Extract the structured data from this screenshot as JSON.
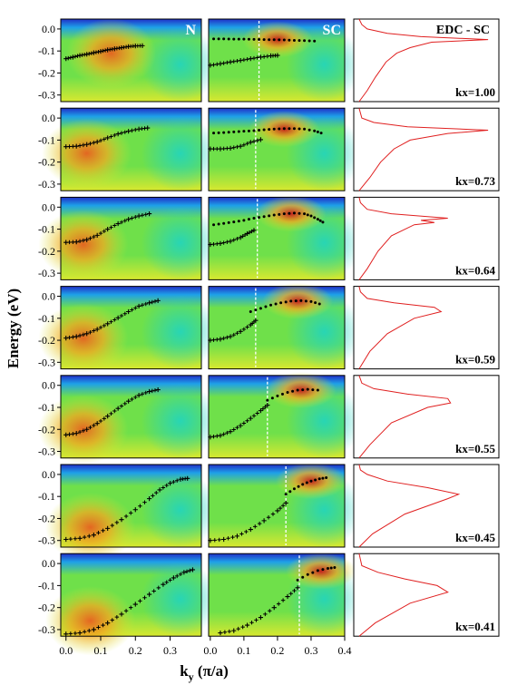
{
  "chart_data": {
    "type": "heatmap",
    "ylabel": "Energy (eV)",
    "xlabel": "k",
    "xlabel_sub": "y",
    "xlabel_unit": " (π/a)",
    "col_label_N": "N",
    "col_label_SC": "SC",
    "edc_title": "EDC - SC",
    "y_ticks": [
      "0.0",
      "-0.1",
      "-0.2",
      "-0.3"
    ],
    "y_tick_values": [
      0.0,
      -0.1,
      -0.2,
      -0.3
    ],
    "ylim": [
      -0.33,
      0.045
    ],
    "x_ticks_N": [
      "0.0",
      "0.1",
      "0.2",
      "0.3"
    ],
    "x_tick_values_N": [
      0.0,
      0.1,
      0.2,
      0.3
    ],
    "xlim_N": [
      -0.015,
      0.39
    ],
    "x_ticks_SC": [
      "0.0",
      "0.1",
      "0.2",
      "0.3",
      "0.4"
    ],
    "x_tick_values_SC": [
      0.0,
      0.1,
      0.2,
      0.3,
      0.4
    ],
    "xlim_SC": [
      -0.005,
      0.4
    ],
    "colors": {
      "colormap": [
        "#2030c8",
        "#1ea0e8",
        "#20d4c0",
        "#6fe04a",
        "#d8e830",
        "#f4a820",
        "#e86020",
        "#c81818"
      ],
      "crosses": "#000000",
      "dots": "#000000",
      "kf_line": "#ffffff",
      "edc": "#e02020"
    },
    "rows": [
      {
        "kx_label": "kx=1.00",
        "kf": 0.145,
        "N_crosses": [
          [
            0.0,
            -0.135
          ],
          [
            0.02,
            -0.128
          ],
          [
            0.04,
            -0.12
          ],
          [
            0.06,
            -0.115
          ],
          [
            0.08,
            -0.108
          ],
          [
            0.1,
            -0.102
          ],
          [
            0.12,
            -0.095
          ],
          [
            0.14,
            -0.09
          ],
          [
            0.16,
            -0.085
          ],
          [
            0.18,
            -0.08
          ],
          [
            0.2,
            -0.077
          ],
          [
            0.22,
            -0.076
          ]
        ],
        "N_peak": [
          0.13,
          -0.11
        ],
        "SC_upper_dots": [
          [
            0.01,
            -0.045
          ],
          [
            0.04,
            -0.045
          ],
          [
            0.07,
            -0.046
          ],
          [
            0.1,
            -0.046
          ],
          [
            0.13,
            -0.047
          ],
          [
            0.16,
            -0.048
          ],
          [
            0.19,
            -0.049
          ],
          [
            0.22,
            -0.05
          ],
          [
            0.25,
            -0.052
          ],
          [
            0.28,
            -0.053
          ],
          [
            0.31,
            -0.055
          ]
        ],
        "SC_lower_crosses": [
          [
            0.0,
            -0.165
          ],
          [
            0.03,
            -0.158
          ],
          [
            0.06,
            -0.15
          ],
          [
            0.09,
            -0.143
          ],
          [
            0.12,
            -0.135
          ],
          [
            0.15,
            -0.128
          ],
          [
            0.18,
            -0.122
          ],
          [
            0.2,
            -0.12
          ]
        ],
        "SC_peak": [
          0.2,
          -0.048
        ],
        "edc": [
          [
            0.04,
            -0.33
          ],
          [
            0.1,
            -0.28
          ],
          [
            0.16,
            -0.22
          ],
          [
            0.24,
            -0.15
          ],
          [
            0.32,
            -0.11
          ],
          [
            0.42,
            -0.085
          ],
          [
            0.58,
            -0.06
          ],
          [
            1.0,
            -0.048
          ],
          [
            0.5,
            -0.035
          ],
          [
            0.25,
            -0.02
          ],
          [
            0.1,
            0.0
          ],
          [
            0.06,
            0.02
          ],
          [
            0.04,
            0.045
          ]
        ]
      },
      {
        "kx_label": "kx=0.73",
        "kf": 0.135,
        "N_crosses": [
          [
            0.0,
            -0.13
          ],
          [
            0.03,
            -0.128
          ],
          [
            0.06,
            -0.12
          ],
          [
            0.09,
            -0.108
          ],
          [
            0.12,
            -0.09
          ],
          [
            0.15,
            -0.072
          ],
          [
            0.18,
            -0.06
          ],
          [
            0.21,
            -0.05
          ],
          [
            0.235,
            -0.045
          ]
        ],
        "N_peak": [
          0.06,
          -0.16
        ],
        "SC_upper_dots": [
          [
            0.01,
            -0.068
          ],
          [
            0.04,
            -0.066
          ],
          [
            0.07,
            -0.063
          ],
          [
            0.1,
            -0.06
          ],
          [
            0.13,
            -0.057
          ],
          [
            0.16,
            -0.053
          ],
          [
            0.19,
            -0.05
          ],
          [
            0.22,
            -0.048
          ],
          [
            0.25,
            -0.048
          ],
          [
            0.28,
            -0.05
          ],
          [
            0.31,
            -0.058
          ],
          [
            0.33,
            -0.068
          ]
        ],
        "SC_lower_crosses": [
          [
            0.0,
            -0.14
          ],
          [
            0.03,
            -0.14
          ],
          [
            0.06,
            -0.137
          ],
          [
            0.09,
            -0.128
          ],
          [
            0.12,
            -0.11
          ],
          [
            0.15,
            -0.098
          ]
        ],
        "SC_peak": [
          0.22,
          -0.05
        ],
        "edc": [
          [
            0.04,
            -0.33
          ],
          [
            0.12,
            -0.27
          ],
          [
            0.2,
            -0.2
          ],
          [
            0.3,
            -0.14
          ],
          [
            0.42,
            -0.1
          ],
          [
            0.7,
            -0.07
          ],
          [
            1.0,
            -0.055
          ],
          [
            0.4,
            -0.04
          ],
          [
            0.15,
            -0.02
          ],
          [
            0.06,
            0.0
          ],
          [
            0.04,
            0.045
          ]
        ]
      },
      {
        "kx_label": "kx=0.64",
        "kf": 0.14,
        "N_crosses": [
          [
            0.0,
            -0.16
          ],
          [
            0.03,
            -0.158
          ],
          [
            0.06,
            -0.148
          ],
          [
            0.09,
            -0.128
          ],
          [
            0.12,
            -0.1
          ],
          [
            0.15,
            -0.075
          ],
          [
            0.18,
            -0.055
          ],
          [
            0.21,
            -0.04
          ],
          [
            0.24,
            -0.03
          ]
        ],
        "N_peak": [
          0.05,
          -0.17
        ],
        "SC_upper_dots": [
          [
            0.01,
            -0.08
          ],
          [
            0.04,
            -0.074
          ],
          [
            0.07,
            -0.067
          ],
          [
            0.1,
            -0.06
          ],
          [
            0.13,
            -0.05
          ],
          [
            0.16,
            -0.043
          ],
          [
            0.19,
            -0.036
          ],
          [
            0.22,
            -0.03
          ],
          [
            0.25,
            -0.027
          ],
          [
            0.28,
            -0.03
          ],
          [
            0.3,
            -0.04
          ],
          [
            0.32,
            -0.055
          ],
          [
            0.335,
            -0.068
          ]
        ],
        "SC_lower_crosses": [
          [
            0.0,
            -0.17
          ],
          [
            0.03,
            -0.165
          ],
          [
            0.06,
            -0.155
          ],
          [
            0.09,
            -0.138
          ],
          [
            0.11,
            -0.12
          ],
          [
            0.13,
            -0.105
          ]
        ],
        "SC_peak": [
          0.24,
          -0.03
        ],
        "edc": [
          [
            0.04,
            -0.33
          ],
          [
            0.1,
            -0.28
          ],
          [
            0.18,
            -0.2
          ],
          [
            0.28,
            -0.13
          ],
          [
            0.45,
            -0.08
          ],
          [
            0.6,
            -0.07
          ],
          [
            0.5,
            -0.06
          ],
          [
            0.7,
            -0.05
          ],
          [
            0.28,
            -0.03
          ],
          [
            0.1,
            -0.01
          ],
          [
            0.05,
            0.02
          ],
          [
            0.04,
            0.045
          ]
        ]
      },
      {
        "kx_label": "kx=0.59",
        "kf": 0.135,
        "N_crosses": [
          [
            0.0,
            -0.19
          ],
          [
            0.03,
            -0.183
          ],
          [
            0.06,
            -0.17
          ],
          [
            0.09,
            -0.15
          ],
          [
            0.12,
            -0.125
          ],
          [
            0.15,
            -0.098
          ],
          [
            0.18,
            -0.07
          ],
          [
            0.21,
            -0.045
          ],
          [
            0.24,
            -0.03
          ],
          [
            0.265,
            -0.02
          ]
        ],
        "N_peak": [
          0.05,
          -0.19
        ],
        "SC_upper_dots": [
          [
            0.12,
            -0.07
          ],
          [
            0.15,
            -0.055
          ],
          [
            0.18,
            -0.04
          ],
          [
            0.21,
            -0.03
          ],
          [
            0.24,
            -0.022
          ],
          [
            0.27,
            -0.02
          ],
          [
            0.3,
            -0.024
          ],
          [
            0.325,
            -0.035
          ]
        ],
        "SC_lower_crosses": [
          [
            0.0,
            -0.2
          ],
          [
            0.03,
            -0.195
          ],
          [
            0.06,
            -0.183
          ],
          [
            0.09,
            -0.16
          ],
          [
            0.12,
            -0.13
          ],
          [
            0.135,
            -0.11
          ]
        ],
        "SC_peak": [
          0.26,
          -0.022
        ],
        "edc": [
          [
            0.04,
            -0.33
          ],
          [
            0.12,
            -0.25
          ],
          [
            0.25,
            -0.17
          ],
          [
            0.45,
            -0.1
          ],
          [
            0.65,
            -0.07
          ],
          [
            0.6,
            -0.05
          ],
          [
            0.3,
            -0.03
          ],
          [
            0.1,
            -0.01
          ],
          [
            0.05,
            0.02
          ],
          [
            0.04,
            0.045
          ]
        ]
      },
      {
        "kx_label": "kx=0.55",
        "kf": 0.17,
        "N_crosses": [
          [
            0.0,
            -0.225
          ],
          [
            0.03,
            -0.218
          ],
          [
            0.06,
            -0.2
          ],
          [
            0.09,
            -0.173
          ],
          [
            0.12,
            -0.14
          ],
          [
            0.15,
            -0.105
          ],
          [
            0.18,
            -0.072
          ],
          [
            0.21,
            -0.045
          ],
          [
            0.24,
            -0.028
          ],
          [
            0.265,
            -0.02
          ]
        ],
        "N_peak": [
          0.05,
          -0.2
        ],
        "SC_upper_dots": [
          [
            0.17,
            -0.068
          ],
          [
            0.2,
            -0.048
          ],
          [
            0.23,
            -0.032
          ],
          [
            0.26,
            -0.022
          ],
          [
            0.29,
            -0.018
          ],
          [
            0.32,
            -0.022
          ]
        ],
        "SC_lower_crosses": [
          [
            0.0,
            -0.235
          ],
          [
            0.03,
            -0.228
          ],
          [
            0.06,
            -0.21
          ],
          [
            0.09,
            -0.183
          ],
          [
            0.12,
            -0.15
          ],
          [
            0.15,
            -0.115
          ],
          [
            0.17,
            -0.09
          ]
        ],
        "SC_peak": [
          0.27,
          -0.022
        ],
        "edc": [
          [
            0.04,
            -0.33
          ],
          [
            0.12,
            -0.27
          ],
          [
            0.28,
            -0.17
          ],
          [
            0.55,
            -0.1
          ],
          [
            0.72,
            -0.08
          ],
          [
            0.7,
            -0.06
          ],
          [
            0.4,
            -0.04
          ],
          [
            0.15,
            -0.015
          ],
          [
            0.06,
            0.01
          ],
          [
            0.04,
            0.045
          ]
        ]
      },
      {
        "kx_label": "kx=0.45",
        "kf": 0.225,
        "N_crosses": [
          [
            0.0,
            -0.295
          ],
          [
            0.04,
            -0.29
          ],
          [
            0.08,
            -0.275
          ],
          [
            0.12,
            -0.245
          ],
          [
            0.16,
            -0.205
          ],
          [
            0.2,
            -0.16
          ],
          [
            0.24,
            -0.11
          ],
          [
            0.27,
            -0.07
          ],
          [
            0.3,
            -0.04
          ],
          [
            0.33,
            -0.022
          ],
          [
            0.35,
            -0.018
          ]
        ],
        "N_peak": [
          0.07,
          -0.24
        ],
        "SC_upper_dots": [
          [
            0.225,
            -0.09
          ],
          [
            0.25,
            -0.065
          ],
          [
            0.275,
            -0.045
          ],
          [
            0.3,
            -0.03
          ],
          [
            0.325,
            -0.02
          ],
          [
            0.345,
            -0.015
          ]
        ],
        "SC_lower_crosses": [
          [
            0.0,
            -0.3
          ],
          [
            0.04,
            -0.295
          ],
          [
            0.08,
            -0.28
          ],
          [
            0.12,
            -0.25
          ],
          [
            0.16,
            -0.21
          ],
          [
            0.2,
            -0.165
          ],
          [
            0.225,
            -0.13
          ]
        ],
        "SC_peak": [
          0.3,
          -0.03
        ],
        "edc": [
          [
            0.04,
            -0.33
          ],
          [
            0.14,
            -0.27
          ],
          [
            0.38,
            -0.18
          ],
          [
            0.7,
            -0.11
          ],
          [
            0.78,
            -0.09
          ],
          [
            0.55,
            -0.06
          ],
          [
            0.25,
            -0.03
          ],
          [
            0.1,
            0.0
          ],
          [
            0.05,
            0.02
          ],
          [
            0.04,
            0.045
          ]
        ]
      },
      {
        "kx_label": "kx=0.41",
        "kf": 0.265,
        "N_crosses": [
          [
            0.0,
            -0.32
          ],
          [
            0.04,
            -0.315
          ],
          [
            0.08,
            -0.3
          ],
          [
            0.12,
            -0.27
          ],
          [
            0.16,
            -0.23
          ],
          [
            0.2,
            -0.185
          ],
          [
            0.24,
            -0.14
          ],
          [
            0.28,
            -0.095
          ],
          [
            0.31,
            -0.065
          ],
          [
            0.34,
            -0.04
          ],
          [
            0.365,
            -0.028
          ]
        ],
        "N_peak": [
          0.07,
          -0.26
        ],
        "SC_upper_dots": [
          [
            0.26,
            -0.075
          ],
          [
            0.29,
            -0.05
          ],
          [
            0.32,
            -0.032
          ],
          [
            0.35,
            -0.022
          ],
          [
            0.37,
            -0.018
          ]
        ],
        "SC_lower_crosses": [
          [
            0.03,
            -0.315
          ],
          [
            0.07,
            -0.305
          ],
          [
            0.11,
            -0.28
          ],
          [
            0.15,
            -0.245
          ],
          [
            0.19,
            -0.2
          ],
          [
            0.23,
            -0.15
          ],
          [
            0.26,
            -0.11
          ]
        ],
        "SC_peak": [
          0.33,
          -0.035
        ],
        "edc": [
          [
            0.04,
            -0.33
          ],
          [
            0.16,
            -0.27
          ],
          [
            0.42,
            -0.18
          ],
          [
            0.7,
            -0.13
          ],
          [
            0.62,
            -0.1
          ],
          [
            0.38,
            -0.07
          ],
          [
            0.18,
            -0.04
          ],
          [
            0.06,
            -0.01
          ],
          [
            0.04,
            0.045
          ]
        ]
      }
    ]
  }
}
